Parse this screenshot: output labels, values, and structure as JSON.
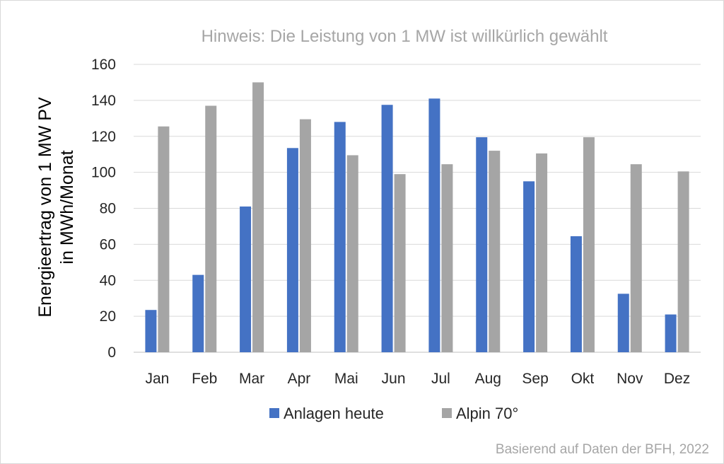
{
  "chart_data": {
    "type": "bar",
    "title": "Hinweis: Die Leistung von 1 MW ist willkürlich gewählt",
    "ylabel": [
      "Energieertrag von 1 MW PV",
      "in MWh/Monat"
    ],
    "xlabel": "",
    "categories": [
      "Jan",
      "Feb",
      "Mar",
      "Apr",
      "Mai",
      "Jun",
      "Jul",
      "Aug",
      "Sep",
      "Okt",
      "Nov",
      "Dez"
    ],
    "ylim": [
      0,
      160
    ],
    "yticks": [
      0,
      20,
      40,
      60,
      80,
      100,
      120,
      140,
      160
    ],
    "grid": true,
    "legend_position": "bottom",
    "series": [
      {
        "name": "Anlagen heute",
        "color": "#4472c4",
        "values": [
          23.5,
          43,
          81,
          113.5,
          128,
          137.5,
          141,
          119.5,
          95,
          64.5,
          32.5,
          21
        ]
      },
      {
        "name": "Alpin 70°",
        "color": "#a5a5a5",
        "values": [
          125.5,
          137,
          150,
          129.5,
          109.5,
          99,
          104.5,
          112,
          110.5,
          119.5,
          104.5,
          100.5
        ]
      }
    ],
    "source_note": "Basierend auf Daten der BFH, 2022"
  }
}
